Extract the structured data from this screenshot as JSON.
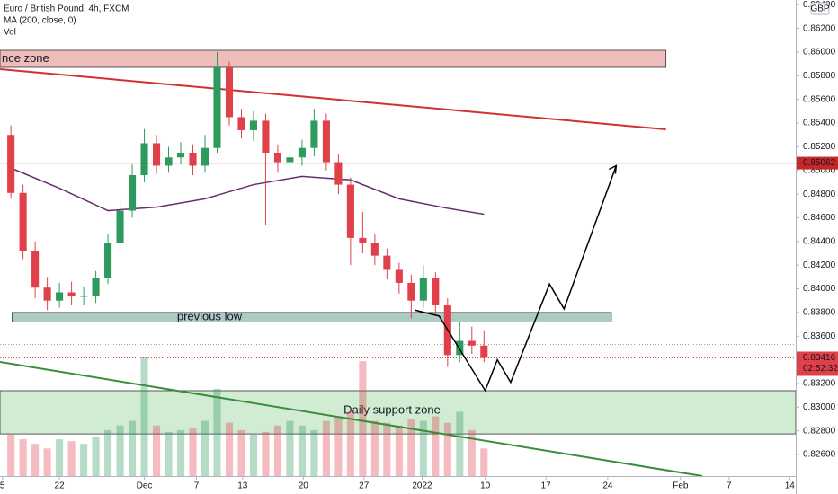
{
  "chart_data": {
    "type": "candlestick",
    "title": "Euro / British Pound, 4h, FXCM",
    "indicator_label": "MA (200, close, 0)",
    "volume_label": "Vol",
    "currency": "GBP",
    "countdown": "02:52:32",
    "up_color": "#2e9b5e",
    "down_color": "#e0404a",
    "x": [
      -4,
      -3,
      -2,
      -1,
      0,
      1,
      2,
      3,
      4,
      5,
      6,
      7,
      8,
      9,
      10,
      11,
      12,
      13,
      14,
      15,
      16,
      17,
      18,
      19,
      20,
      21,
      22,
      23,
      24,
      25,
      26,
      27,
      28,
      29,
      30,
      31,
      32,
      33,
      34,
      35
    ],
    "open": [
      0.853,
      0.8481,
      0.8432,
      0.8401,
      0.839,
      0.8397,
      0.8394,
      0.8394,
      0.8409,
      0.8439,
      0.8466,
      0.8496,
      0.8523,
      0.8504,
      0.8511,
      0.8515,
      0.8504,
      0.8519,
      0.8587,
      0.8545,
      0.8534,
      0.8542,
      0.8515,
      0.8507,
      0.8511,
      0.8519,
      0.8542,
      0.8507,
      0.8488,
      0.8443,
      0.8439,
      0.8428,
      0.8416,
      0.8405,
      0.839,
      0.8409,
      0.8386,
      0.8344,
      0.8356,
      0.8352
    ],
    "high": [
      0.8538,
      0.8488,
      0.844,
      0.841,
      0.8405,
      0.8406,
      0.8402,
      0.8415,
      0.8446,
      0.8475,
      0.8505,
      0.8535,
      0.853,
      0.852,
      0.8524,
      0.8522,
      0.853,
      0.86,
      0.8592,
      0.8552,
      0.855,
      0.8548,
      0.8522,
      0.8518,
      0.8526,
      0.8552,
      0.8548,
      0.8514,
      0.8494,
      0.8465,
      0.8446,
      0.8434,
      0.8422,
      0.8412,
      0.842,
      0.8414,
      0.8392,
      0.8372,
      0.8368,
      0.8365
    ],
    "low": [
      0.8476,
      0.8425,
      0.8392,
      0.8382,
      0.8384,
      0.8386,
      0.8386,
      0.8388,
      0.8404,
      0.8432,
      0.846,
      0.849,
      0.8497,
      0.8498,
      0.8505,
      0.8496,
      0.8498,
      0.8515,
      0.8538,
      0.8527,
      0.8525,
      0.8454,
      0.8498,
      0.85,
      0.8504,
      0.8512,
      0.85,
      0.848,
      0.842,
      0.843,
      0.842,
      0.8408,
      0.8396,
      0.8375,
      0.8384,
      0.8378,
      0.8334,
      0.8338,
      0.8345,
      0.8338
    ],
    "close": [
      0.8481,
      0.8432,
      0.8401,
      0.839,
      0.8397,
      0.8394,
      0.8394,
      0.8409,
      0.8439,
      0.8466,
      0.8496,
      0.8523,
      0.8504,
      0.8511,
      0.8515,
      0.8504,
      0.8519,
      0.8587,
      0.8545,
      0.8534,
      0.8542,
      0.8515,
      0.8507,
      0.8511,
      0.8519,
      0.8542,
      0.8507,
      0.8488,
      0.8443,
      0.8439,
      0.8428,
      0.8416,
      0.8405,
      0.839,
      0.8409,
      0.8386,
      0.8344,
      0.8356,
      0.8352,
      0.83416
    ],
    "volume": [
      45,
      40,
      35,
      30,
      40,
      38,
      35,
      42,
      50,
      55,
      60,
      130,
      55,
      48,
      50,
      52,
      60,
      95,
      58,
      50,
      45,
      48,
      55,
      60,
      55,
      50,
      60,
      65,
      70,
      125,
      60,
      58,
      55,
      62,
      60,
      65,
      58,
      70,
      50,
      30
    ],
    "ma": {
      "color": "#6a2c70",
      "x": [
        -4,
        0,
        4,
        8,
        12,
        16,
        20,
        24,
        28,
        32,
        35
      ],
      "values": [
        0.8502,
        0.8485,
        0.8466,
        0.8469,
        0.8476,
        0.8488,
        0.8495,
        0.8492,
        0.8476,
        0.8468,
        0.8463
      ]
    },
    "zones": [
      {
        "label": "nce zone",
        "top": 0.86015,
        "bottom": 0.85871,
        "from": -4.9,
        "to": 50,
        "fill": "rgba(214,80,80,0.38)",
        "stroke": "#333333"
      },
      {
        "label": "previous low",
        "top": 0.838,
        "bottom": 0.8372,
        "from": -3.9,
        "to": 45.5,
        "fill": "rgba(70,140,120,0.45)",
        "stroke": "#333333"
      },
      {
        "label": "Daily support zone",
        "top": 0.83139,
        "bottom": 0.82774,
        "from": -4.9,
        "to": 60.7,
        "fill": "rgba(76,175,80,0.25)",
        "stroke": "#333333"
      }
    ],
    "trendlines": [
      {
        "color": "#d32f2f",
        "x": [
          -4.9,
          50
        ],
        "y": [
          0.85856,
          0.85347
        ]
      },
      {
        "color": "#388e3c",
        "x": [
          -4.9,
          53
        ],
        "y": [
          0.83382,
          0.82418
        ]
      }
    ],
    "projection": {
      "color": "#000000",
      "x": [
        29.3,
        31.3,
        35.1,
        36.1,
        37.2,
        40.4,
        41.6,
        45.9
      ],
      "y": [
        0.8382,
        0.8377,
        0.8314,
        0.834,
        0.8321,
        0.8404,
        0.8383,
        0.8504
      ]
    },
    "level": {
      "value": 0.85062,
      "color": "#c62828"
    },
    "dotted_level": {
      "value": 0.8353,
      "color": "#9e9e9e"
    },
    "xlim": [
      -4.9,
      60.7
    ],
    "ylim": [
      0.82418,
      0.8644
    ],
    "yticks": [
      {
        "value": 0.826,
        "label": "0.82600"
      },
      {
        "value": 0.828,
        "label": "0.82800"
      },
      {
        "value": 0.83,
        "label": "0.83000"
      },
      {
        "value": 0.832,
        "label": "0.83200"
      },
      {
        "value": 0.834,
        "label": "0.83400"
      },
      {
        "value": 0.836,
        "label": "0.83600"
      },
      {
        "value": 0.838,
        "label": "0.83800"
      },
      {
        "value": 0.84,
        "label": "0.84000"
      },
      {
        "value": 0.842,
        "label": "0.84200"
      },
      {
        "value": 0.844,
        "label": "0.84400"
      },
      {
        "value": 0.846,
        "label": "0.84600"
      },
      {
        "value": 0.848,
        "label": "0.84800"
      },
      {
        "value": 0.85,
        "label": "0.85000"
      },
      {
        "value": 0.852,
        "label": "0.85200"
      },
      {
        "value": 0.854,
        "label": "0.85400"
      },
      {
        "value": 0.856,
        "label": "0.85600"
      },
      {
        "value": 0.858,
        "label": "0.85800"
      },
      {
        "value": 0.86,
        "label": "0.86000"
      },
      {
        "value": 0.862,
        "label": "0.86200"
      },
      {
        "value": 0.864,
        "label": "0.86400"
      }
    ],
    "xticks": [
      {
        "value": -4.7,
        "label": "5"
      },
      {
        "value": 0,
        "label": "22"
      },
      {
        "value": 7,
        "label": "Dec"
      },
      {
        "value": 11.3,
        "label": "7"
      },
      {
        "value": 15.1,
        "label": "13"
      },
      {
        "value": 20.1,
        "label": "20"
      },
      {
        "value": 25.1,
        "label": "27"
      },
      {
        "value": 29.9,
        "label": "2022"
      },
      {
        "value": 35.1,
        "label": "10"
      },
      {
        "value": 40.1,
        "label": "17"
      },
      {
        "value": 45.2,
        "label": "24"
      },
      {
        "value": 51.2,
        "label": "Feb"
      },
      {
        "value": 55.2,
        "label": "7"
      },
      {
        "value": 60.2,
        "label": "14"
      }
    ]
  }
}
